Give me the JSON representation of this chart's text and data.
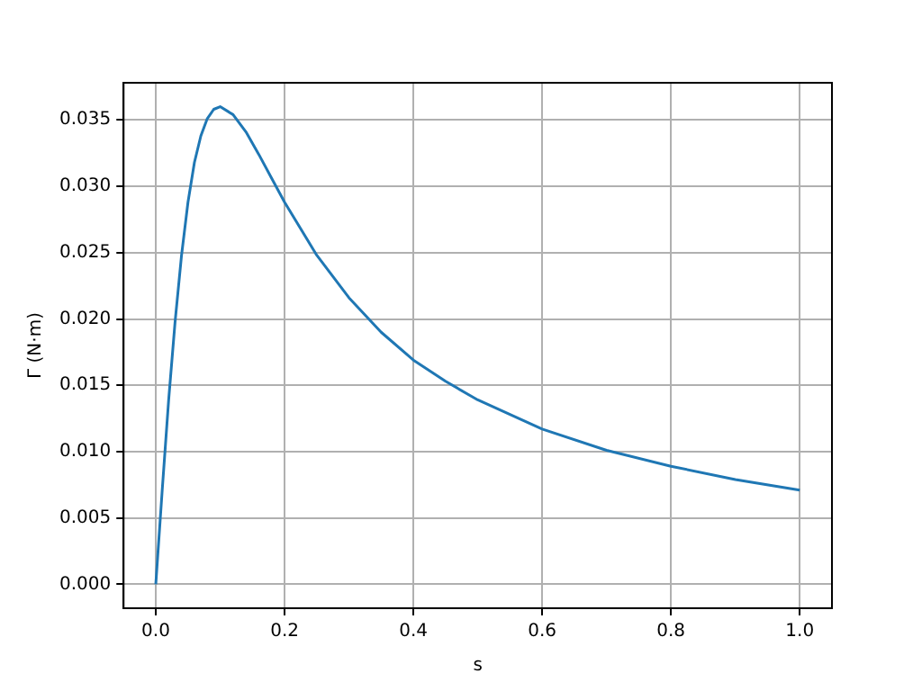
{
  "chart_data": {
    "type": "line",
    "xlabel": "s",
    "ylabel": "Γ (N·m)",
    "x": [
      0,
      0.01,
      0.02,
      0.03,
      0.04,
      0.05,
      0.06,
      0.07,
      0.08,
      0.09,
      0.1,
      0.12,
      0.14,
      0.16,
      0.18,
      0.2,
      0.25,
      0.3,
      0.35,
      0.4,
      0.45,
      0.5,
      0.6,
      0.7,
      0.8,
      0.9,
      1.0
    ],
    "series": [
      {
        "color": "#1f77b4",
        "values": [
          0,
          0.0071,
          0.0139,
          0.0198,
          0.0248,
          0.0288,
          0.0318,
          0.0338,
          0.0351,
          0.0358,
          0.036,
          0.0354,
          0.0341,
          0.0324,
          0.0306,
          0.0288,
          0.0248,
          0.0216,
          0.019,
          0.0169,
          0.0153,
          0.0139,
          0.0117,
          0.0101,
          0.0089,
          0.0079,
          0.0071
        ]
      }
    ],
    "xlim": [
      -0.05,
      1.05
    ],
    "xticks": [
      {
        "value": 0,
        "label": "0.0"
      },
      {
        "value": 0.2,
        "label": "0.2"
      },
      {
        "value": 0.4,
        "label": "0.4"
      },
      {
        "value": 0.6,
        "label": "0.6"
      },
      {
        "value": 0.8,
        "label": "0.8"
      },
      {
        "value": 1,
        "label": "1.0"
      }
    ],
    "ylim": [
      -0.0018,
      0.0378
    ],
    "yticks": [
      {
        "value": 0,
        "label": "0.000"
      },
      {
        "value": 0.005,
        "label": "0.005"
      },
      {
        "value": 0.01,
        "label": "0.010"
      },
      {
        "value": 0.015,
        "label": "0.015"
      },
      {
        "value": 0.02,
        "label": "0.020"
      },
      {
        "value": 0.025,
        "label": "0.025"
      },
      {
        "value": 0.03,
        "label": "0.030"
      },
      {
        "value": 0.035,
        "label": "0.035"
      }
    ],
    "grid": true,
    "legend": false,
    "marker": "none",
    "line_style": "solid"
  }
}
